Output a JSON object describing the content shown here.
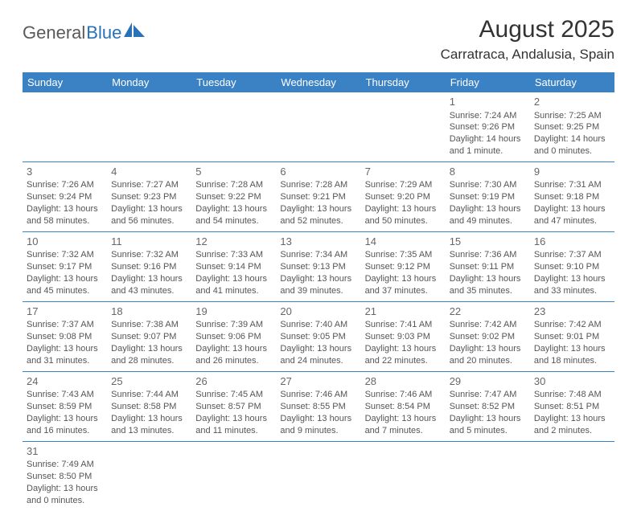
{
  "logo": {
    "part1": "General",
    "part2": "Blue"
  },
  "header": {
    "month_title": "August 2025",
    "location": "Carratraca, Andalusia, Spain"
  },
  "colors": {
    "header_bg": "#3b82c4",
    "header_text": "#ffffff",
    "border": "#3b82c4",
    "body_text": "#555555",
    "title_text": "#333333"
  },
  "weekdays": [
    "Sunday",
    "Monday",
    "Tuesday",
    "Wednesday",
    "Thursday",
    "Friday",
    "Saturday"
  ],
  "weeks": [
    [
      null,
      null,
      null,
      null,
      null,
      {
        "n": "1",
        "sr": "Sunrise: 7:24 AM",
        "ss": "Sunset: 9:26 PM",
        "d1": "Daylight: 14 hours",
        "d2": "and 1 minute."
      },
      {
        "n": "2",
        "sr": "Sunrise: 7:25 AM",
        "ss": "Sunset: 9:25 PM",
        "d1": "Daylight: 14 hours",
        "d2": "and 0 minutes."
      }
    ],
    [
      {
        "n": "3",
        "sr": "Sunrise: 7:26 AM",
        "ss": "Sunset: 9:24 PM",
        "d1": "Daylight: 13 hours",
        "d2": "and 58 minutes."
      },
      {
        "n": "4",
        "sr": "Sunrise: 7:27 AM",
        "ss": "Sunset: 9:23 PM",
        "d1": "Daylight: 13 hours",
        "d2": "and 56 minutes."
      },
      {
        "n": "5",
        "sr": "Sunrise: 7:28 AM",
        "ss": "Sunset: 9:22 PM",
        "d1": "Daylight: 13 hours",
        "d2": "and 54 minutes."
      },
      {
        "n": "6",
        "sr": "Sunrise: 7:28 AM",
        "ss": "Sunset: 9:21 PM",
        "d1": "Daylight: 13 hours",
        "d2": "and 52 minutes."
      },
      {
        "n": "7",
        "sr": "Sunrise: 7:29 AM",
        "ss": "Sunset: 9:20 PM",
        "d1": "Daylight: 13 hours",
        "d2": "and 50 minutes."
      },
      {
        "n": "8",
        "sr": "Sunrise: 7:30 AM",
        "ss": "Sunset: 9:19 PM",
        "d1": "Daylight: 13 hours",
        "d2": "and 49 minutes."
      },
      {
        "n": "9",
        "sr": "Sunrise: 7:31 AM",
        "ss": "Sunset: 9:18 PM",
        "d1": "Daylight: 13 hours",
        "d2": "and 47 minutes."
      }
    ],
    [
      {
        "n": "10",
        "sr": "Sunrise: 7:32 AM",
        "ss": "Sunset: 9:17 PM",
        "d1": "Daylight: 13 hours",
        "d2": "and 45 minutes."
      },
      {
        "n": "11",
        "sr": "Sunrise: 7:32 AM",
        "ss": "Sunset: 9:16 PM",
        "d1": "Daylight: 13 hours",
        "d2": "and 43 minutes."
      },
      {
        "n": "12",
        "sr": "Sunrise: 7:33 AM",
        "ss": "Sunset: 9:14 PM",
        "d1": "Daylight: 13 hours",
        "d2": "and 41 minutes."
      },
      {
        "n": "13",
        "sr": "Sunrise: 7:34 AM",
        "ss": "Sunset: 9:13 PM",
        "d1": "Daylight: 13 hours",
        "d2": "and 39 minutes."
      },
      {
        "n": "14",
        "sr": "Sunrise: 7:35 AM",
        "ss": "Sunset: 9:12 PM",
        "d1": "Daylight: 13 hours",
        "d2": "and 37 minutes."
      },
      {
        "n": "15",
        "sr": "Sunrise: 7:36 AM",
        "ss": "Sunset: 9:11 PM",
        "d1": "Daylight: 13 hours",
        "d2": "and 35 minutes."
      },
      {
        "n": "16",
        "sr": "Sunrise: 7:37 AM",
        "ss": "Sunset: 9:10 PM",
        "d1": "Daylight: 13 hours",
        "d2": "and 33 minutes."
      }
    ],
    [
      {
        "n": "17",
        "sr": "Sunrise: 7:37 AM",
        "ss": "Sunset: 9:08 PM",
        "d1": "Daylight: 13 hours",
        "d2": "and 31 minutes."
      },
      {
        "n": "18",
        "sr": "Sunrise: 7:38 AM",
        "ss": "Sunset: 9:07 PM",
        "d1": "Daylight: 13 hours",
        "d2": "and 28 minutes."
      },
      {
        "n": "19",
        "sr": "Sunrise: 7:39 AM",
        "ss": "Sunset: 9:06 PM",
        "d1": "Daylight: 13 hours",
        "d2": "and 26 minutes."
      },
      {
        "n": "20",
        "sr": "Sunrise: 7:40 AM",
        "ss": "Sunset: 9:05 PM",
        "d1": "Daylight: 13 hours",
        "d2": "and 24 minutes."
      },
      {
        "n": "21",
        "sr": "Sunrise: 7:41 AM",
        "ss": "Sunset: 9:03 PM",
        "d1": "Daylight: 13 hours",
        "d2": "and 22 minutes."
      },
      {
        "n": "22",
        "sr": "Sunrise: 7:42 AM",
        "ss": "Sunset: 9:02 PM",
        "d1": "Daylight: 13 hours",
        "d2": "and 20 minutes."
      },
      {
        "n": "23",
        "sr": "Sunrise: 7:42 AM",
        "ss": "Sunset: 9:01 PM",
        "d1": "Daylight: 13 hours",
        "d2": "and 18 minutes."
      }
    ],
    [
      {
        "n": "24",
        "sr": "Sunrise: 7:43 AM",
        "ss": "Sunset: 8:59 PM",
        "d1": "Daylight: 13 hours",
        "d2": "and 16 minutes."
      },
      {
        "n": "25",
        "sr": "Sunrise: 7:44 AM",
        "ss": "Sunset: 8:58 PM",
        "d1": "Daylight: 13 hours",
        "d2": "and 13 minutes."
      },
      {
        "n": "26",
        "sr": "Sunrise: 7:45 AM",
        "ss": "Sunset: 8:57 PM",
        "d1": "Daylight: 13 hours",
        "d2": "and 11 minutes."
      },
      {
        "n": "27",
        "sr": "Sunrise: 7:46 AM",
        "ss": "Sunset: 8:55 PM",
        "d1": "Daylight: 13 hours",
        "d2": "and 9 minutes."
      },
      {
        "n": "28",
        "sr": "Sunrise: 7:46 AM",
        "ss": "Sunset: 8:54 PM",
        "d1": "Daylight: 13 hours",
        "d2": "and 7 minutes."
      },
      {
        "n": "29",
        "sr": "Sunrise: 7:47 AM",
        "ss": "Sunset: 8:52 PM",
        "d1": "Daylight: 13 hours",
        "d2": "and 5 minutes."
      },
      {
        "n": "30",
        "sr": "Sunrise: 7:48 AM",
        "ss": "Sunset: 8:51 PM",
        "d1": "Daylight: 13 hours",
        "d2": "and 2 minutes."
      }
    ],
    [
      {
        "n": "31",
        "sr": "Sunrise: 7:49 AM",
        "ss": "Sunset: 8:50 PM",
        "d1": "Daylight: 13 hours",
        "d2": "and 0 minutes."
      },
      null,
      null,
      null,
      null,
      null,
      null
    ]
  ]
}
